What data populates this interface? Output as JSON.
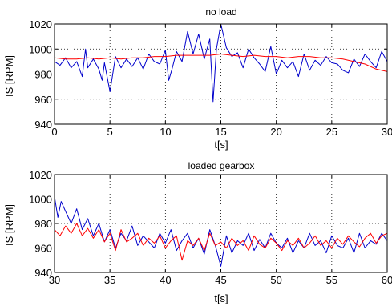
{
  "chart_data": [
    {
      "type": "line",
      "title": "no load",
      "xlabel": "t[s]",
      "ylabel": "IS [RPM]",
      "xlim": [
        0,
        30
      ],
      "ylim": [
        940,
        1020
      ],
      "xticks": [
        0,
        5,
        10,
        15,
        20,
        25,
        30
      ],
      "xtick_labels": [
        "0",
        "5",
        "10",
        "15",
        "20",
        "25",
        "30"
      ],
      "yticks": [
        940,
        960,
        980,
        1000,
        1020
      ],
      "ytick_labels": [
        "940",
        "960",
        "980",
        "1000",
        "1020"
      ],
      "grid": true,
      "series": [
        {
          "color": "#0000cc",
          "x": [
            0,
            0.5,
            1,
            1.5,
            2,
            2.5,
            2.8,
            3,
            3.5,
            4,
            4.3,
            4.5,
            5,
            5.5,
            6,
            6.5,
            7,
            7.5,
            8,
            8.5,
            9,
            9.5,
            10,
            10.3,
            10.6,
            11,
            11.5,
            12,
            12.5,
            13,
            13.5,
            14,
            14.3,
            14.6,
            15,
            15.5,
            16,
            16.5,
            17,
            17.5,
            18,
            18.5,
            19,
            19.5,
            20,
            20.5,
            21,
            21.5,
            22,
            22.5,
            23,
            23.5,
            24,
            24.5,
            25,
            25.5,
            26,
            26.5,
            27,
            27.5,
            28,
            28.5,
            29,
            29.5,
            30
          ],
          "values": [
            990,
            987,
            993,
            985,
            990,
            978,
            1000,
            985,
            992,
            984,
            975,
            989,
            966,
            994,
            985,
            992,
            986,
            993,
            984,
            996,
            990,
            988,
            999,
            975,
            984,
            998,
            990,
            1014,
            996,
            1012,
            992,
            1008,
            958,
            1000,
            1020,
            1001,
            994,
            997,
            985,
            1000,
            993,
            988,
            982,
            1002,
            980,
            991,
            985,
            990,
            978,
            996,
            983,
            991,
            987,
            994,
            989,
            988,
            983,
            981,
            992,
            986,
            996,
            990,
            985,
            998,
            990
          ]
        },
        {
          "color": "#ff0000",
          "x": [
            0,
            1,
            2,
            3,
            4,
            5,
            6,
            7,
            8,
            9,
            10,
            11,
            12,
            13,
            14,
            15,
            16,
            17,
            18,
            19,
            20,
            21,
            22,
            23,
            24,
            25,
            26,
            27,
            28,
            29,
            30
          ],
          "values": [
            993,
            992,
            992,
            993,
            992,
            993,
            992,
            993,
            993,
            994,
            994,
            995,
            995,
            995,
            995,
            996,
            995,
            994,
            995,
            994,
            994,
            993,
            994,
            994,
            993,
            993,
            992,
            990,
            988,
            984,
            982
          ]
        }
      ]
    },
    {
      "type": "line",
      "title": "loaded gearbox",
      "xlabel": "t[s]",
      "ylabel": "IS [RPM]",
      "xlim": [
        30,
        60
      ],
      "ylim": [
        940,
        1020
      ],
      "xticks": [
        30,
        35,
        40,
        45,
        50,
        55,
        60
      ],
      "xtick_labels": [
        "30",
        "35",
        "40",
        "45",
        "50",
        "55",
        "60"
      ],
      "yticks": [
        940,
        960,
        980,
        1000,
        1020
      ],
      "ytick_labels": [
        "940",
        "960",
        "980",
        "1000",
        "1020"
      ],
      "grid": true,
      "series": [
        {
          "color": "#0000cc",
          "x": [
            30,
            30.3,
            30.6,
            31,
            31.5,
            32,
            32.5,
            33,
            33.5,
            34,
            34.5,
            35,
            35.5,
            36,
            36.5,
            37,
            37.5,
            38,
            38.5,
            39,
            39.5,
            40,
            40.5,
            41,
            41.5,
            42,
            42.5,
            43,
            43.5,
            44,
            44.5,
            45,
            45.5,
            46,
            46.5,
            47,
            47.5,
            48,
            48.5,
            49,
            49.5,
            50,
            50.5,
            51,
            51.5,
            52,
            52.5,
            53,
            53.5,
            54,
            54.5,
            55,
            55.5,
            56,
            56.5,
            57,
            57.5,
            58,
            58.5,
            59,
            59.5,
            60
          ],
          "values": [
            1002,
            985,
            998,
            990,
            980,
            992,
            975,
            984,
            970,
            980,
            965,
            975,
            960,
            972,
            966,
            978,
            962,
            970,
            965,
            960,
            972,
            964,
            975,
            958,
            966,
            972,
            960,
            968,
            955,
            975,
            962,
            945,
            970,
            956,
            966,
            962,
            972,
            958,
            967,
            960,
            972,
            964,
            960,
            968,
            956,
            966,
            960,
            972,
            962,
            966,
            956,
            970,
            962,
            960,
            968,
            956,
            972,
            960,
            966,
            963,
            972,
            966
          ]
        },
        {
          "color": "#ff0000",
          "x": [
            30,
            30.5,
            31,
            31.5,
            32,
            32.5,
            33,
            33.5,
            34,
            34.5,
            35,
            35.5,
            36,
            36.5,
            37,
            37.5,
            38,
            38.5,
            39,
            39.5,
            40,
            40.5,
            41,
            41.5,
            42,
            42.5,
            43,
            43.5,
            44,
            44.5,
            45,
            45.5,
            46,
            46.5,
            47,
            47.5,
            48,
            48.5,
            49,
            49.5,
            50,
            50.5,
            51,
            51.5,
            52,
            52.5,
            53,
            53.5,
            54,
            54.5,
            55,
            55.5,
            56,
            56.5,
            57,
            57.5,
            58,
            58.5,
            59,
            59.5,
            60
          ],
          "values": [
            975,
            970,
            978,
            972,
            980,
            970,
            976,
            968,
            975,
            965,
            972,
            958,
            975,
            965,
            968,
            972,
            962,
            968,
            964,
            970,
            960,
            966,
            970,
            950,
            966,
            962,
            968,
            958,
            972,
            962,
            965,
            960,
            968,
            962,
            966,
            958,
            970,
            963,
            960,
            968,
            964,
            958,
            966,
            962,
            968,
            960,
            964,
            970,
            962,
            966,
            960,
            968,
            963,
            970,
            965,
            961,
            968,
            972,
            964,
            970,
            972
          ]
        }
      ]
    }
  ]
}
